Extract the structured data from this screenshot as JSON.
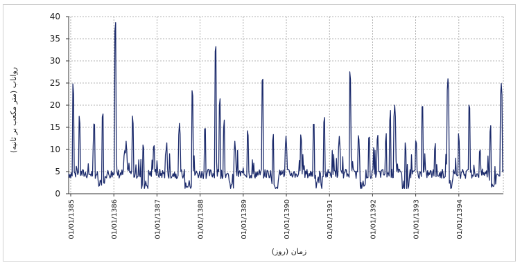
{
  "chart_data": {
    "type": "line",
    "xlabel": "زمان (روز)",
    "ylabel": "رواناب (متر مکعب بر ثانیه)",
    "ylim": [
      0,
      40
    ],
    "yticks": [
      "0",
      "5",
      "10",
      "15",
      "20",
      "25",
      "30",
      "35",
      "40"
    ],
    "grid": true,
    "x_category_labels": [
      "01/01/1385",
      "01/01/1386",
      "01/01/1387",
      "01/01/1388",
      "01/01/1389",
      "01/01/1390",
      "01/01/1391",
      "01/01/1392",
      "01/01/1393",
      "01/01/1394"
    ],
    "series": [
      {
        "color": "#1b2a6b",
        "baseline": 4.5,
        "peaks": [
          {
            "x": 0.2,
            "y": 25
          },
          {
            "x": 0.5,
            "y": 18
          },
          {
            "x": 1.2,
            "y": 17
          },
          {
            "x": 1.6,
            "y": 19
          },
          {
            "x": 2.2,
            "y": 39
          },
          {
            "x": 2.7,
            "y": 12
          },
          {
            "x": 3.0,
            "y": 18
          },
          {
            "x": 3.5,
            "y": 12
          },
          {
            "x": 4.0,
            "y": 12
          },
          {
            "x": 4.6,
            "y": 12
          },
          {
            "x": 5.2,
            "y": 16
          },
          {
            "x": 5.8,
            "y": 24
          },
          {
            "x": 6.4,
            "y": 16
          },
          {
            "x": 6.9,
            "y": 34
          },
          {
            "x": 7.1,
            "y": 22
          },
          {
            "x": 7.3,
            "y": 17
          },
          {
            "x": 7.8,
            "y": 12
          },
          {
            "x": 8.4,
            "y": 15
          },
          {
            "x": 9.1,
            "y": 27
          },
          {
            "x": 9.6,
            "y": 14
          },
          {
            "x": 10.2,
            "y": 13
          },
          {
            "x": 10.9,
            "y": 14
          },
          {
            "x": 11.5,
            "y": 17
          },
          {
            "x": 12.0,
            "y": 18
          },
          {
            "x": 12.7,
            "y": 13
          },
          {
            "x": 13.2,
            "y": 28
          },
          {
            "x": 13.6,
            "y": 14
          },
          {
            "x": 14.1,
            "y": 14
          },
          {
            "x": 14.5,
            "y": 14
          },
          {
            "x": 14.9,
            "y": 14
          },
          {
            "x": 15.1,
            "y": 19
          },
          {
            "x": 15.3,
            "y": 20
          },
          {
            "x": 15.8,
            "y": 12
          },
          {
            "x": 16.3,
            "y": 13
          },
          {
            "x": 16.6,
            "y": 21
          },
          {
            "x": 17.2,
            "y": 12
          },
          {
            "x": 17.8,
            "y": 26
          },
          {
            "x": 18.3,
            "y": 14
          },
          {
            "x": 18.8,
            "y": 21
          },
          {
            "x": 19.3,
            "y": 11
          },
          {
            "x": 19.8,
            "y": 16
          },
          {
            "x": 20.3,
            "y": 25
          }
        ]
      }
    ]
  }
}
